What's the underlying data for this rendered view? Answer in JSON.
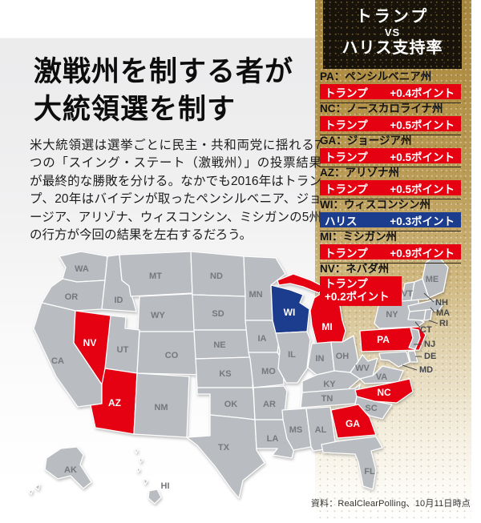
{
  "page": {
    "headline_line1": "激戦州を制する者が",
    "headline_line2": "大統領選を制す",
    "body": "米大統領選は選挙ごとに民主・共和両党に揺れる7つの「スイング・ステート（激戦州）」の投票結果が最終的な勝敗を分ける。なかでも2016年はトランプ、20年はバイデンが取ったペンシルベニア、ジョージア、アリゾナ、ウィスコンシン、ミシガンの5州の行方が今回の結果を左右するだろう。",
    "source": "資料：RealClearPolling、10月11日時点"
  },
  "panel": {
    "title_line1": "トランプ",
    "title_line2": "VS",
    "title_line3": "ハリス支持率",
    "colors": {
      "red": "#e50012",
      "blue": "#1c3c8e"
    },
    "entries": [
      {
        "id": "PA",
        "state": "PA：ペンシルベニア州",
        "leader": "トランプ",
        "points": "+0.4ポイント",
        "party_color": "red"
      },
      {
        "id": "NC",
        "state": "NC：ノースカロライナ州",
        "leader": "トランプ",
        "points": "+0.5ポイント",
        "party_color": "red"
      },
      {
        "id": "GA",
        "state": "GA：ジョージア州",
        "leader": "トランプ",
        "points": "+0.5ポイント",
        "party_color": "red"
      },
      {
        "id": "AZ",
        "state": "AZ：アリゾナ州",
        "leader": "トランプ",
        "points": "+0.5ポイント",
        "party_color": "red"
      },
      {
        "id": "WI",
        "state": "WI：ウィスコンシン州",
        "leader": "ハリス",
        "points": "+0.3ポイント",
        "party_color": "blue"
      },
      {
        "id": "MI",
        "state": "MI：ミシガン州",
        "leader": "トランプ",
        "points": "+0.9ポイント",
        "party_color": "red"
      },
      {
        "id": "NV",
        "state": "NV：ネバダ州",
        "leader": "トランプ",
        "points": "+0.2ポイント",
        "party_color": "red"
      }
    ]
  },
  "map": {
    "states": [
      "WA",
      "OR",
      "CA",
      "ID",
      "MT",
      "WY",
      "NV",
      "UT",
      "CO",
      "AZ",
      "NM",
      "ND",
      "SD",
      "NE",
      "KS",
      "OK",
      "TX",
      "MN",
      "IA",
      "MO",
      "AR",
      "LA",
      "WI",
      "IL",
      "MS",
      "MI",
      "IN",
      "OH",
      "KY",
      "TN",
      "AL",
      "WV",
      "VA",
      "NC",
      "SC",
      "GA",
      "FL",
      "NY",
      "PA",
      "VT",
      "NH",
      "ME",
      "MA",
      "CT",
      "RI",
      "NJ",
      "DE",
      "MD",
      "AK",
      "HI"
    ],
    "swing": {
      "NV": "red",
      "AZ": "red",
      "WI": "blue",
      "MI": "red",
      "PA": "red",
      "NC": "red",
      "GA": "red"
    },
    "colors": {
      "base": "#b9bcc0",
      "red": "#e50012",
      "blue": "#1c3c8e",
      "label": "#75787c",
      "swing_label": "#ffffff",
      "callout": "#45484c"
    }
  }
}
